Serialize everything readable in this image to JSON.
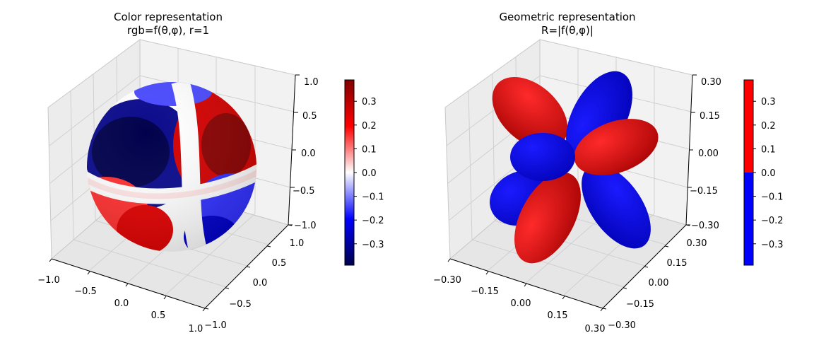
{
  "chart_data": [
    {
      "type": "3d-surface",
      "title_line1": "Color representation",
      "title_line2": "rgb=f(θ,φ), r=1",
      "surface": "unit sphere colored by f(θ,φ)",
      "colormap": "seismic",
      "x_ticks": [
        "−1.0",
        "−0.5",
        "0.0",
        "0.5",
        "1.0"
      ],
      "y_ticks": [
        "−1.0",
        "−0.5",
        "0.0",
        "0.5",
        "1.0"
      ],
      "z_ticks": [
        "−1.0",
        "−0.5",
        "0.0",
        "0.5",
        "1.0"
      ],
      "xlim": [
        -1,
        1
      ],
      "ylim": [
        -1,
        1
      ],
      "zlim": [
        -1,
        1
      ],
      "grid": true,
      "colorbar": {
        "range": [
          -0.39,
          0.39
        ],
        "ticks": [
          0.3,
          0.2,
          0.1,
          0.0,
          -0.1,
          -0.2,
          -0.3
        ],
        "tick_labels": [
          "0.3",
          "0.2",
          "0.1",
          "0.0",
          "−0.1",
          "−0.2",
          "−0.3"
        ]
      }
    },
    {
      "type": "3d-surface",
      "title_line1": "Geometric representation",
      "title_line2": "R=|f(θ,φ)|",
      "surface": "lobes of radius |f(θ,φ)| colored by sign",
      "colormap": "bwr (two-color)",
      "x_ticks": [
        "−0.30",
        "−0.15",
        "0.00",
        "0.15",
        "0.30"
      ],
      "y_ticks": [
        "−0.30",
        "−0.15",
        "0.00",
        "0.15",
        "0.30"
      ],
      "z_ticks": [
        "−0.30",
        "−0.15",
        "0.00",
        "0.15",
        "0.30"
      ],
      "xlim": [
        -0.3,
        0.3
      ],
      "ylim": [
        -0.3,
        0.3
      ],
      "zlim": [
        -0.3,
        0.3
      ],
      "grid": true,
      "colorbar": {
        "range": [
          -0.39,
          0.39
        ],
        "ticks": [
          0.3,
          0.2,
          0.1,
          0.0,
          -0.1,
          -0.2,
          -0.3
        ],
        "tick_labels": [
          "0.3",
          "0.2",
          "0.1",
          "0.0",
          "−0.1",
          "−0.2",
          "−0.3"
        ]
      }
    }
  ],
  "colors": {
    "positive": "#ff0000",
    "negative": "#0000ff",
    "seismic_low": "#00004c",
    "seismic_mid": "#ffffff",
    "seismic_high": "#800000",
    "pane": "#f2f2f2",
    "grid": "#d0d0d0"
  }
}
